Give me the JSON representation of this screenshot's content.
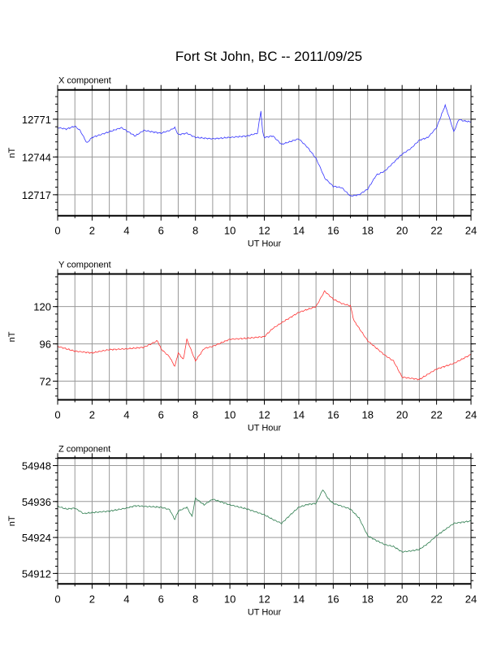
{
  "chart_data": {
    "title": "Fort St John, BC -- 2011/09/25",
    "panels": [
      {
        "type": "line",
        "title": "X component",
        "xlabel": "UT Hour",
        "ylabel": "nT",
        "xlim": [
          0,
          24
        ],
        "ylim": [
          12702,
          12792
        ],
        "xticks": [
          0,
          2,
          4,
          6,
          8,
          10,
          12,
          14,
          16,
          18,
          20,
          22,
          24
        ],
        "yticks": [
          12717,
          12744,
          12771
        ],
        "grid": true,
        "color": "#3333ff",
        "x": [
          0,
          0.5,
          1,
          1.3,
          1.7,
          2,
          2.5,
          3,
          3.7,
          4.5,
          5,
          5.5,
          6,
          6.5,
          6.8,
          7,
          7.5,
          8,
          9,
          10,
          11,
          11.6,
          11.8,
          11.9,
          12,
          12.5,
          13,
          13.5,
          14,
          14.5,
          15,
          15.3,
          15.5,
          16,
          16.5,
          17,
          17.5,
          18,
          18.5,
          19,
          19.5,
          20,
          20.5,
          21,
          21.5,
          22,
          22.5,
          22.8,
          23,
          23.3,
          23.5,
          24
        ],
        "values": [
          12765,
          12764,
          12766,
          12763,
          12754,
          12758,
          12760,
          12762,
          12765,
          12759,
          12763,
          12762,
          12761,
          12763,
          12765,
          12760,
          12761,
          12758,
          12757,
          12758,
          12759,
          12761,
          12777,
          12762,
          12758,
          12759,
          12753,
          12755,
          12757,
          12751,
          12743,
          12735,
          12729,
          12723,
          12722,
          12716,
          12717,
          12721,
          12731,
          12734,
          12740,
          12746,
          12750,
          12756,
          12758,
          12765,
          12781,
          12770,
          12762,
          12771,
          12770,
          12769
        ]
      },
      {
        "type": "line",
        "title": "Y component",
        "xlabel": "UT Hour",
        "ylabel": "nT",
        "xlim": [
          0,
          24
        ],
        "ylim": [
          60,
          141
        ],
        "xticks": [
          0,
          2,
          4,
          6,
          8,
          10,
          12,
          14,
          16,
          18,
          20,
          22,
          24
        ],
        "yticks": [
          72,
          96,
          120
        ],
        "grid": true,
        "color": "#ff3333",
        "x": [
          0,
          1,
          2,
          3,
          4,
          5,
          5.8,
          6,
          6.5,
          6.8,
          7,
          7.3,
          7.5,
          8,
          8.5,
          9,
          10,
          11,
          12,
          12.5,
          13,
          14,
          15,
          15.5,
          16,
          16.5,
          17,
          17.2,
          18,
          19,
          19.5,
          20,
          21,
          22,
          23,
          24
        ],
        "values": [
          94.4,
          91.3,
          90.2,
          92.3,
          92.8,
          93.8,
          98,
          92.8,
          87.6,
          81.4,
          90.2,
          86,
          99,
          85,
          93,
          94.4,
          99,
          99.6,
          100.7,
          106,
          109.6,
          116.3,
          120,
          130,
          124.8,
          122,
          120.5,
          111,
          98,
          88.7,
          85,
          74.6,
          73.1,
          79.8,
          83.4,
          89.2
        ]
      },
      {
        "type": "line",
        "title": "Z component",
        "xlabel": "UT Hour",
        "ylabel": "nT",
        "xlim": [
          0,
          24
        ],
        "ylim": [
          54908.5,
          54950.5
        ],
        "xticks": [
          0,
          2,
          4,
          6,
          8,
          10,
          12,
          14,
          16,
          18,
          20,
          22,
          24
        ],
        "yticks": [
          54912,
          54924,
          54936,
          54948
        ],
        "grid": true,
        "color": "#2e7d4f",
        "x": [
          0,
          0.5,
          1,
          1.5,
          2,
          3,
          4,
          4.5,
          5,
          6,
          6.5,
          6.8,
          7,
          7.5,
          7.8,
          8,
          8.5,
          9,
          10,
          11,
          12,
          12.5,
          13,
          13.5,
          14,
          14.5,
          15,
          15.4,
          15.7,
          16,
          17,
          17.5,
          18,
          18.5,
          19,
          19.5,
          20,
          20.5,
          21,
          21.5,
          22,
          23,
          24
        ],
        "values": [
          54934.4,
          54933.5,
          54933.8,
          54932,
          54932.3,
          54932.8,
          54933.8,
          54934.6,
          54934.4,
          54934.1,
          54933.3,
          54930,
          54932.8,
          54934.1,
          54931,
          54937.1,
          54934.9,
          54936.8,
          54934.9,
          54933.5,
          54931.6,
          54930,
          54928.7,
          54931.5,
          54934.1,
          54935,
          54935.4,
          54940,
          54937,
          54935.4,
          54933.5,
          54930.5,
          54924.6,
          54923,
          54921.6,
          54921,
          54919.2,
          54919.5,
          54920,
          54922,
          54924.6,
          54928.7,
          54929.5
        ]
      }
    ]
  }
}
